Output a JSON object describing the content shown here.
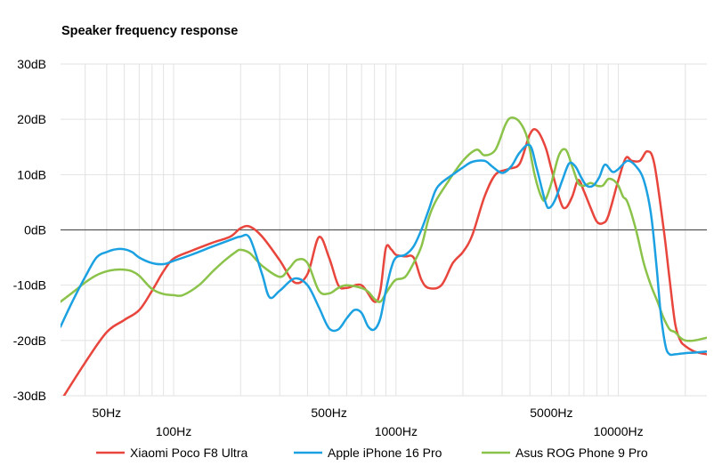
{
  "chart_data": {
    "type": "line",
    "title": "Speaker frequency response",
    "x_scale": "log",
    "xlim": [
      31,
      25000
    ],
    "ylim": [
      -30,
      30
    ],
    "y_ticks": [
      30,
      20,
      10,
      0,
      -10,
      -20,
      -30
    ],
    "y_tick_labels": [
      "30dB",
      "20dB",
      "10dB",
      "0dB",
      "-10dB",
      "-20dB",
      "-30dB"
    ],
    "x_tick_labels": [
      {
        "value": 50,
        "label": "50Hz",
        "row": 1
      },
      {
        "value": 100,
        "label": "100Hz",
        "row": 2
      },
      {
        "value": 500,
        "label": "500Hz",
        "row": 1
      },
      {
        "value": 1000,
        "label": "1000Hz",
        "row": 2
      },
      {
        "value": 5000,
        "label": "5000Hz",
        "row": 1
      },
      {
        "value": 10000,
        "label": "10000Hz",
        "row": 2
      }
    ],
    "grid": true,
    "legend_position": "bottom",
    "series": [
      {
        "name": "Xiaomi Poco F8 Ultra",
        "color": "#e8453c",
        "points": [
          [
            31,
            -31
          ],
          [
            40,
            -24
          ],
          [
            50,
            -18.5
          ],
          [
            60,
            -16.3
          ],
          [
            70,
            -14.5
          ],
          [
            80,
            -11
          ],
          [
            90,
            -7.5
          ],
          [
            100,
            -5.2
          ],
          [
            120,
            -3.8
          ],
          [
            150,
            -2.3
          ],
          [
            180,
            -1.2
          ],
          [
            200,
            0.3
          ],
          [
            220,
            0.6
          ],
          [
            250,
            -1.2
          ],
          [
            300,
            -5.5
          ],
          [
            350,
            -9.5
          ],
          [
            400,
            -8
          ],
          [
            450,
            -1.3
          ],
          [
            500,
            -5
          ],
          [
            550,
            -10
          ],
          [
            600,
            -10.5
          ],
          [
            700,
            -10
          ],
          [
            800,
            -13
          ],
          [
            850,
            -11
          ],
          [
            900,
            -3.3
          ],
          [
            950,
            -3.5
          ],
          [
            1000,
            -4.5
          ],
          [
            1100,
            -4.8
          ],
          [
            1200,
            -5
          ],
          [
            1300,
            -9
          ],
          [
            1400,
            -10.5
          ],
          [
            1600,
            -10
          ],
          [
            1800,
            -6
          ],
          [
            2000,
            -4
          ],
          [
            2200,
            -1
          ],
          [
            2500,
            6
          ],
          [
            2800,
            10
          ],
          [
            3200,
            11
          ],
          [
            3600,
            12
          ],
          [
            4000,
            17.3
          ],
          [
            4300,
            18
          ],
          [
            4700,
            15
          ],
          [
            5000,
            11
          ],
          [
            5500,
            5
          ],
          [
            5800,
            4
          ],
          [
            6200,
            6
          ],
          [
            6600,
            9
          ],
          [
            7000,
            7
          ],
          [
            7500,
            4
          ],
          [
            8000,
            1.5
          ],
          [
            8500,
            1.2
          ],
          [
            9000,
            2.5
          ],
          [
            10000,
            9
          ],
          [
            10800,
            13
          ],
          [
            11500,
            12.5
          ],
          [
            12500,
            12.5
          ],
          [
            13500,
            14.2
          ],
          [
            14500,
            12
          ],
          [
            16000,
            0
          ],
          [
            17000,
            -9
          ],
          [
            18000,
            -17
          ],
          [
            19000,
            -20
          ],
          [
            20000,
            -21
          ],
          [
            22000,
            -22
          ],
          [
            25000,
            -22.5
          ]
        ]
      },
      {
        "name": "Apple iPhone 16 Pro",
        "color": "#1ba1e2",
        "points": [
          [
            31,
            -17.5
          ],
          [
            35,
            -13
          ],
          [
            40,
            -8.5
          ],
          [
            45,
            -5
          ],
          [
            50,
            -4
          ],
          [
            55,
            -3.5
          ],
          [
            60,
            -3.5
          ],
          [
            65,
            -4
          ],
          [
            70,
            -5
          ],
          [
            80,
            -6
          ],
          [
            90,
            -6.2
          ],
          [
            100,
            -5.6
          ],
          [
            120,
            -4.5
          ],
          [
            150,
            -3
          ],
          [
            180,
            -1.8
          ],
          [
            200,
            -1.2
          ],
          [
            220,
            -1.5
          ],
          [
            250,
            -8
          ],
          [
            270,
            -12.2
          ],
          [
            300,
            -11
          ],
          [
            350,
            -8.8
          ],
          [
            400,
            -10
          ],
          [
            450,
            -14
          ],
          [
            500,
            -17.8
          ],
          [
            550,
            -18
          ],
          [
            600,
            -16
          ],
          [
            650,
            -14.5
          ],
          [
            700,
            -15
          ],
          [
            750,
            -17.5
          ],
          [
            800,
            -18
          ],
          [
            850,
            -16
          ],
          [
            900,
            -11
          ],
          [
            950,
            -7
          ],
          [
            1000,
            -5
          ],
          [
            1100,
            -4.5
          ],
          [
            1200,
            -3
          ],
          [
            1300,
            0
          ],
          [
            1400,
            3.5
          ],
          [
            1500,
            7
          ],
          [
            1600,
            8.5
          ],
          [
            1800,
            10
          ],
          [
            2000,
            11.3
          ],
          [
            2200,
            12.3
          ],
          [
            2500,
            12.5
          ],
          [
            2700,
            11.5
          ],
          [
            3000,
            10.3
          ],
          [
            3300,
            11.5
          ],
          [
            3600,
            14
          ],
          [
            4000,
            15.3
          ],
          [
            4300,
            11
          ],
          [
            4700,
            5
          ],
          [
            4900,
            4
          ],
          [
            5200,
            5.5
          ],
          [
            5600,
            9
          ],
          [
            6000,
            12
          ],
          [
            6400,
            11.5
          ],
          [
            6800,
            9.5
          ],
          [
            7200,
            8
          ],
          [
            7700,
            8
          ],
          [
            8200,
            9.5
          ],
          [
            8700,
            11.8
          ],
          [
            9400,
            10.5
          ],
          [
            10000,
            11
          ],
          [
            11000,
            12.5
          ],
          [
            12000,
            11.5
          ],
          [
            13000,
            9
          ],
          [
            14000,
            3
          ],
          [
            14800,
            -6
          ],
          [
            15500,
            -15
          ],
          [
            16300,
            -21
          ],
          [
            17000,
            -22.5
          ],
          [
            18000,
            -22.5
          ],
          [
            20000,
            -22.3
          ],
          [
            22000,
            -22.2
          ],
          [
            25000,
            -22
          ]
        ]
      },
      {
        "name": "Asus ROG Phone 9 Pro",
        "color": "#8bc34a",
        "points": [
          [
            31,
            -13
          ],
          [
            36,
            -11
          ],
          [
            40,
            -9.5
          ],
          [
            45,
            -8.2
          ],
          [
            50,
            -7.5
          ],
          [
            55,
            -7.2
          ],
          [
            60,
            -7.2
          ],
          [
            65,
            -7.5
          ],
          [
            70,
            -8.3
          ],
          [
            80,
            -10.7
          ],
          [
            90,
            -11.6
          ],
          [
            100,
            -11.8
          ],
          [
            110,
            -11.8
          ],
          [
            130,
            -10
          ],
          [
            150,
            -7.5
          ],
          [
            170,
            -5.5
          ],
          [
            190,
            -4
          ],
          [
            200,
            -3.6
          ],
          [
            220,
            -4.2
          ],
          [
            250,
            -6.5
          ],
          [
            300,
            -8.5
          ],
          [
            330,
            -7
          ],
          [
            360,
            -5.4
          ],
          [
            400,
            -6
          ],
          [
            450,
            -11
          ],
          [
            500,
            -11.5
          ],
          [
            550,
            -10.5
          ],
          [
            600,
            -10
          ],
          [
            700,
            -10.5
          ],
          [
            750,
            -11.2
          ],
          [
            800,
            -12.5
          ],
          [
            850,
            -13
          ],
          [
            900,
            -11.5
          ],
          [
            950,
            -10
          ],
          [
            1000,
            -9
          ],
          [
            1100,
            -8.5
          ],
          [
            1200,
            -6
          ],
          [
            1300,
            -3
          ],
          [
            1400,
            2
          ],
          [
            1500,
            5
          ],
          [
            1700,
            8.5
          ],
          [
            2000,
            12.5
          ],
          [
            2300,
            14.5
          ],
          [
            2500,
            13.5
          ],
          [
            2800,
            14.5
          ],
          [
            3100,
            19
          ],
          [
            3300,
            20.3
          ],
          [
            3600,
            19.5
          ],
          [
            3900,
            16.5
          ],
          [
            4200,
            10
          ],
          [
            4500,
            6
          ],
          [
            4700,
            5.5
          ],
          [
            5000,
            8.5
          ],
          [
            5400,
            13.5
          ],
          [
            5800,
            14.5
          ],
          [
            6200,
            11.5
          ],
          [
            6600,
            8.5
          ],
          [
            7000,
            8
          ],
          [
            7500,
            8.5
          ],
          [
            8000,
            8
          ],
          [
            8500,
            8
          ],
          [
            9000,
            9.2
          ],
          [
            9500,
            9
          ],
          [
            10000,
            8
          ],
          [
            10500,
            6
          ],
          [
            11000,
            5
          ],
          [
            12000,
            0
          ],
          [
            13000,
            -6
          ],
          [
            14000,
            -10
          ],
          [
            15000,
            -13
          ],
          [
            16000,
            -16
          ],
          [
            17000,
            -18
          ],
          [
            18000,
            -18.5
          ],
          [
            19000,
            -19.5
          ],
          [
            20000,
            -20
          ],
          [
            22000,
            -20
          ],
          [
            25000,
            -19.5
          ]
        ]
      }
    ]
  }
}
